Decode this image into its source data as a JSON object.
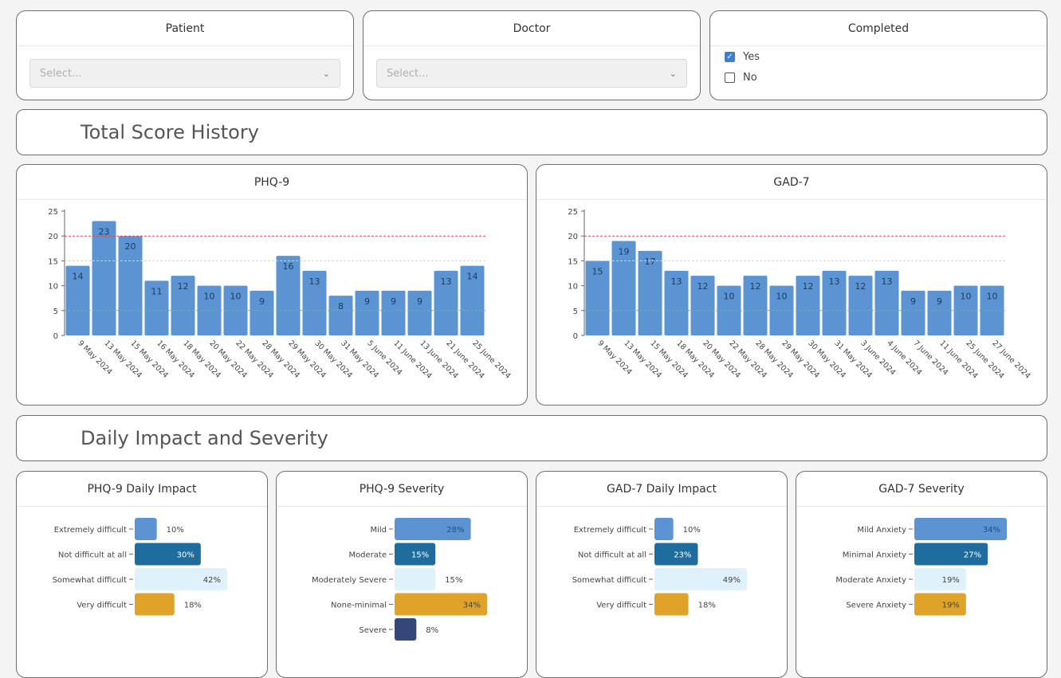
{
  "filters": {
    "patient": {
      "title": "Patient",
      "placeholder": "Select..."
    },
    "doctor": {
      "title": "Doctor",
      "placeholder": "Select..."
    },
    "completed": {
      "title": "Completed",
      "options": [
        {
          "label": "Yes",
          "checked": true
        },
        {
          "label": "No",
          "checked": false
        }
      ]
    }
  },
  "sections": {
    "history": "Total Score History",
    "impact": "Daily Impact and Severity"
  },
  "icons": {
    "select_chevron": "chevron-down-icon",
    "checkbox_checked": "checkmark-icon"
  },
  "colors": {
    "bar": "#5b93d3",
    "bar_dark": "#1f6c9e",
    "bar_light": "#dff1fb",
    "bar_gold": "#dfa329",
    "bar_navy": "#35477a",
    "threshold_severe": "#e0484f",
    "threshold_moderate": "#f1d57b",
    "threshold_mild": "#6cbf6b"
  },
  "chart_data": [
    {
      "id": "phq9",
      "type": "bar",
      "title": "PHQ-9",
      "categories": [
        "9 May 2024",
        "13 May 2024",
        "15 May 2024",
        "16 May 2024",
        "18 May 2024",
        "20 May 2024",
        "22 May 2024",
        "28 May 2024",
        "29 May 2024",
        "30 May 2024",
        "31 May 2024",
        "5 June 2024",
        "11 June 2024",
        "13 June 2024",
        "21 June 2024",
        "25 June 2024"
      ],
      "values": [
        14,
        23,
        20,
        11,
        12,
        10,
        10,
        9,
        16,
        13,
        8,
        9,
        9,
        9,
        13,
        14
      ],
      "ylim": [
        0,
        25
      ],
      "yticks": [
        0,
        5,
        10,
        15,
        20,
        25
      ],
      "thresholds": [
        20,
        15,
        5
      ],
      "xlabel": "",
      "ylabel": ""
    },
    {
      "id": "gad7",
      "type": "bar",
      "title": "GAD-7",
      "categories": [
        "9 May 2024",
        "13 May 2024",
        "15 May 2024",
        "18 May 2024",
        "20 May 2024",
        "22 May 2024",
        "28 May 2024",
        "29 May 2024",
        "30 May 2024",
        "31 May 2024",
        "3 June 2024",
        "4 June 2024",
        "7 June 2024",
        "11 June 2024",
        "25 June 2024",
        "27 June 2024"
      ],
      "values": [
        15,
        19,
        17,
        13,
        12,
        10,
        12,
        10,
        12,
        13,
        12,
        13,
        9,
        9,
        10,
        10
      ],
      "ylim": [
        0,
        25
      ],
      "yticks": [
        0,
        5,
        10,
        15,
        20,
        25
      ],
      "thresholds": [
        20,
        15,
        5
      ],
      "xlabel": "",
      "ylabel": ""
    },
    {
      "id": "phq9-impact",
      "type": "bar",
      "orientation": "horizontal",
      "title": "PHQ-9 Daily Impact",
      "categories": [
        "Extremely difficult",
        "Not difficult at all",
        "Somewhat difficult",
        "Very difficult"
      ],
      "values": [
        10,
        30,
        42,
        18
      ],
      "labels": [
        "10%",
        "30%",
        "42%",
        "18%"
      ],
      "colors": [
        "#5b93d3",
        "#1f6c9e",
        "#dff1fb",
        "#dfa329"
      ],
      "label_colors": [
        "#444",
        "#ffffff",
        "#444",
        "#444"
      ],
      "label_inside": [
        false,
        true,
        true,
        false
      ],
      "xlim": [
        0,
        42
      ]
    },
    {
      "id": "phq9-severity",
      "type": "bar",
      "orientation": "horizontal",
      "title": "PHQ-9 Severity",
      "categories": [
        "Mild",
        "Moderate",
        "Moderately Severe",
        "None-minimal",
        "Severe"
      ],
      "values": [
        28,
        15,
        15,
        34,
        8
      ],
      "labels": [
        "28%",
        "15%",
        "15%",
        "34%",
        "8%"
      ],
      "colors": [
        "#5b93d3",
        "#1f6c9e",
        "#dff1fb",
        "#dfa329",
        "#35477a"
      ],
      "label_colors": [
        "#1f4f80",
        "#ffffff",
        "#444",
        "#444",
        "#444"
      ],
      "label_inside": [
        true,
        true,
        false,
        true,
        false
      ],
      "xlim": [
        0,
        34
      ]
    },
    {
      "id": "gad7-impact",
      "type": "bar",
      "orientation": "horizontal",
      "title": "GAD-7 Daily Impact",
      "categories": [
        "Extremely difficult",
        "Not difficult at all",
        "Somewhat difficult",
        "Very difficult"
      ],
      "values": [
        10,
        23,
        49,
        18
      ],
      "labels": [
        "10%",
        "23%",
        "49%",
        "18%"
      ],
      "colors": [
        "#5b93d3",
        "#1f6c9e",
        "#dff1fb",
        "#dfa329"
      ],
      "label_colors": [
        "#444",
        "#ffffff",
        "#444",
        "#444"
      ],
      "label_inside": [
        false,
        true,
        true,
        false
      ],
      "xlim": [
        0,
        49
      ]
    },
    {
      "id": "gad7-severity",
      "type": "bar",
      "orientation": "horizontal",
      "title": "GAD-7 Severity",
      "categories": [
        "Mild Anxiety",
        "Minimal Anxiety",
        "Moderate Anxiety",
        "Severe Anxiety"
      ],
      "values": [
        34,
        27,
        19,
        19
      ],
      "labels": [
        "34%",
        "27%",
        "19%",
        "19%"
      ],
      "colors": [
        "#5b93d3",
        "#1f6c9e",
        "#dff1fb",
        "#dfa329"
      ],
      "label_colors": [
        "#1f4f80",
        "#ffffff",
        "#444",
        "#444"
      ],
      "label_inside": [
        true,
        true,
        true,
        true
      ],
      "xlim": [
        0,
        34
      ]
    }
  ]
}
